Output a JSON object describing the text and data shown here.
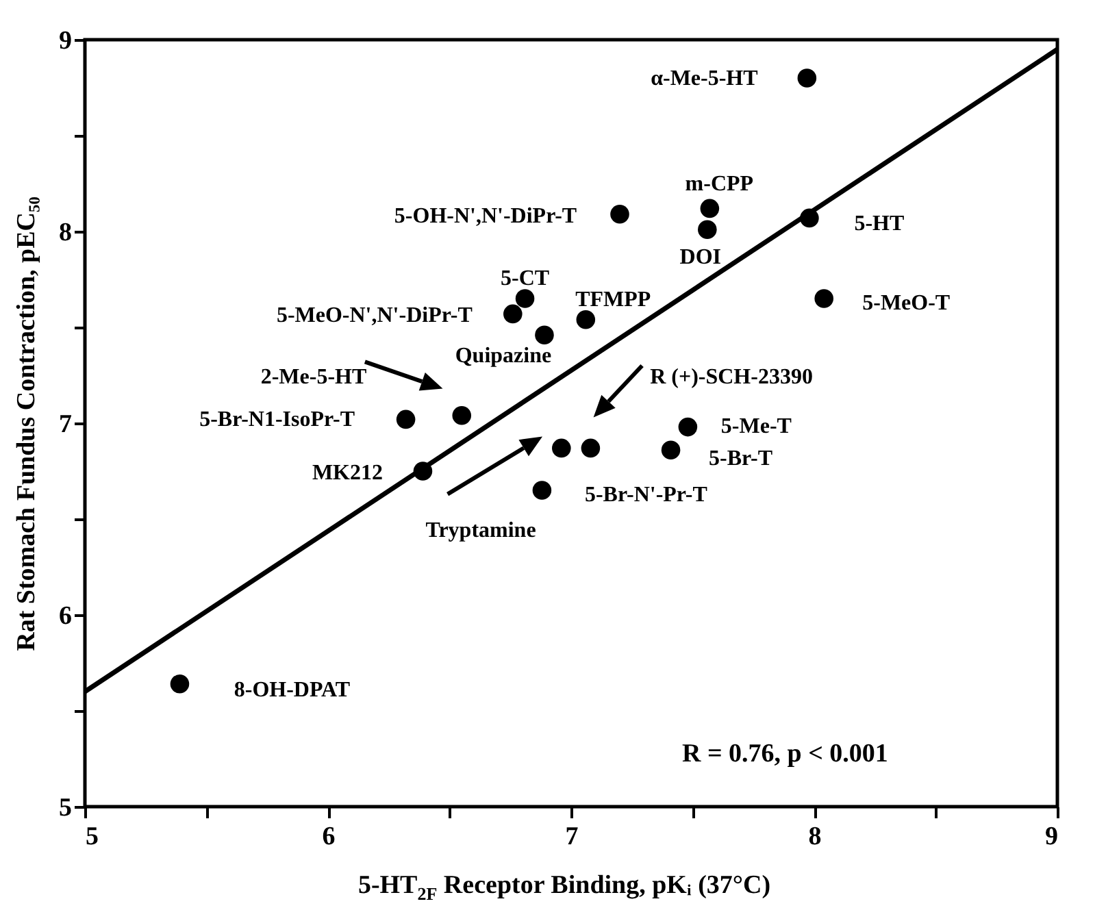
{
  "chart_data": {
    "type": "scatter",
    "xlabel": "5-HT$_{2F}$ Receptor Binding, pKᵢ (37°C)",
    "ylabel": "Rat Stomach Fundus Contraction, pEC₅₀",
    "xlim": [
      5,
      9
    ],
    "ylim": [
      5,
      9
    ],
    "xticks": [
      5,
      {
        "value": 5.5,
        "label": null
      },
      6,
      {
        "value": 6.5,
        "label": null
      },
      7,
      {
        "value": 7.5,
        "label": null
      },
      8,
      {
        "value": 8.5,
        "label": null
      },
      9
    ],
    "yticks": [
      5,
      {
        "value": 5.5,
        "label": null
      },
      6,
      {
        "value": 6.5,
        "label": null
      },
      7,
      {
        "value": 7.5,
        "label": null
      },
      8,
      {
        "value": 8.5,
        "label": null
      },
      9
    ],
    "marker": "circle",
    "series": [
      {
        "color": "#000000",
        "x": [
          7.97,
          7.57,
          7.56,
          7.2,
          7.98,
          8.04,
          6.81,
          6.76,
          7.06,
          6.89,
          6.55,
          6.32,
          7.48,
          6.96,
          7.08,
          7.41,
          6.39,
          6.88,
          5.39
        ],
        "values": [
          8.8,
          8.12,
          8.01,
          8.09,
          8.07,
          7.65,
          7.65,
          7.57,
          7.54,
          7.46,
          7.04,
          7.02,
          6.98,
          6.87,
          6.87,
          6.86,
          6.75,
          6.65,
          5.64
        ]
      },
      {
        "type": "line",
        "marker": "none",
        "color": "#000000",
        "x": [
          5,
          9
        ],
        "values": [
          5.6,
          8.95
        ]
      }
    ],
    "annotations": [
      {
        "text": "α-Me-5-HT",
        "x": 7.97,
        "y": 8.8
      },
      {
        "text": "m-CPP",
        "x": 7.57,
        "y": 8.12
      },
      {
        "text": "5-OH-N',N'-DiPr-T",
        "x": 7.2,
        "y": 8.09
      },
      {
        "text": "DOI",
        "x": 7.56,
        "y": 8.01
      },
      {
        "text": "5-HT",
        "x": 7.98,
        "y": 8.07
      },
      {
        "text": "5-MeO-T",
        "x": 8.04,
        "y": 7.65
      },
      {
        "text": "5-CT",
        "x": 6.81,
        "y": 7.65
      },
      {
        "text": "5-MeO-N',N'-DiPr-T",
        "x": 6.76,
        "y": 7.57
      },
      {
        "text": "TFMPP",
        "x": 7.06,
        "y": 7.54
      },
      {
        "text": "Quipazine",
        "x": 6.89,
        "y": 7.46
      },
      {
        "text": "5-Br-N1-IsoPr-T",
        "x": 6.32,
        "y": 7.02
      },
      {
        "text": "5-Me-T",
        "x": 7.48,
        "y": 6.98
      },
      {
        "text": "5-Br-T",
        "x": 7.41,
        "y": 6.86
      },
      {
        "text": "MK212",
        "x": 6.39,
        "y": 6.75
      },
      {
        "text": "5-Br-N'-Pr-T",
        "x": 6.88,
        "y": 6.65
      },
      {
        "text": "8-OH-DPAT",
        "x": 5.39,
        "y": 5.64
      },
      "2-Me-5-HT",
      "R (+)-SCH-23390",
      "Tryptamine",
      "R = 0.76, p < 0.001"
    ]
  }
}
